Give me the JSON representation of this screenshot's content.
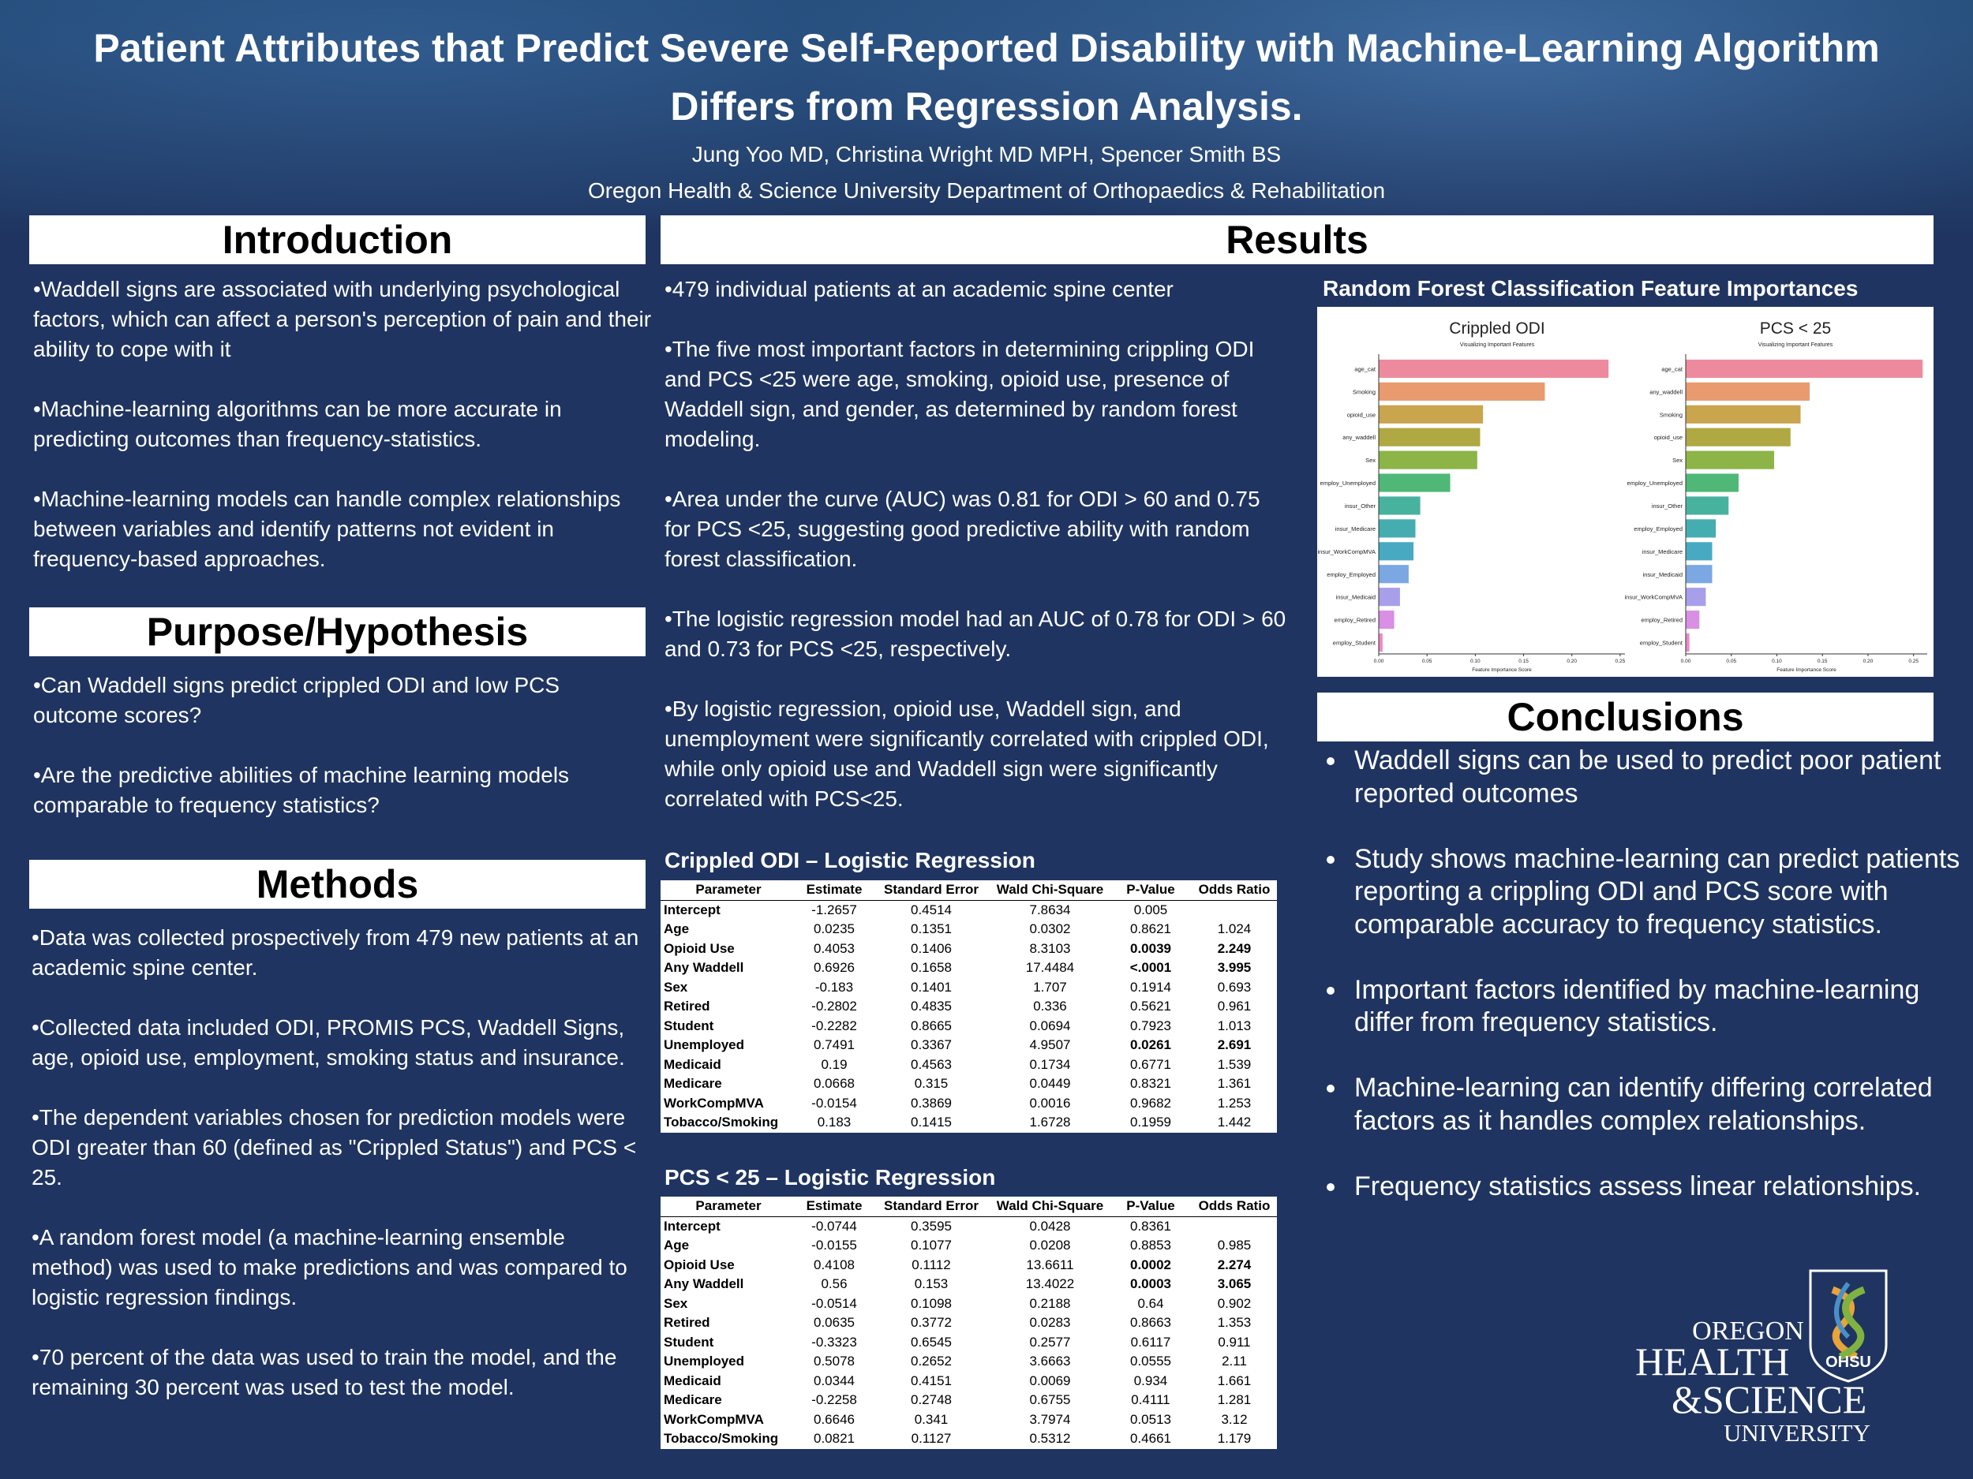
{
  "header": {
    "title": "Patient Attributes that Predict Severe Self-Reported Disability with Machine-Learning Algorithm Differs from Regression Analysis.",
    "authors": "Jung Yoo MD, Christina Wright MD MPH, Spencer Smith BS",
    "affiliation": "Oregon Health & Science University Department of Orthopaedics & Rehabilitation"
  },
  "introduction": {
    "heading": "Introduction",
    "paragraphs": [
      "•Waddell signs are associated with underlying psychological factors, which can affect a person's perception of pain and their ability to cope with it",
      "•Machine-learning algorithms can be more accurate in predicting outcomes than frequency-statistics.",
      "•Machine-learning models can handle complex relationships between variables and identify patterns not evident in frequency-based approaches."
    ]
  },
  "purpose": {
    "heading": "Purpose/Hypothesis",
    "paragraphs": [
      "•Can Waddell signs predict crippled ODI and low PCS outcome scores?",
      "•Are the predictive abilities of machine learning models comparable to frequency statistics?"
    ]
  },
  "methods": {
    "heading": "Methods",
    "paragraphs": [
      "•Data was collected prospectively from 479 new patients at an academic spine center.",
      "•Collected data included ODI, PROMIS PCS, Waddell Signs, age, opioid use, employment, smoking status and insurance.",
      "•The dependent variables chosen for prediction models were ODI greater than 60 (defined as \"Crippled Status\") and PCS < 25.",
      "•A random forest model (a machine-learning ensemble method) was used to make predictions and was compared to logistic regression findings.",
      "•70 percent of the data was used to train the model, and the remaining 30 percent was used to test the model."
    ]
  },
  "results": {
    "heading": "Results",
    "paragraphs": [
      "•479 individual patients at an academic spine center",
      "•The five most important factors in determining crippling ODI and PCS <25 were age, smoking, opioid use, presence of Waddell sign, and gender, as determined by random forest modeling.",
      "•Area under the curve (AUC) was 0.81 for ODI > 60 and 0.75 for PCS <25, suggesting good predictive ability with random forest classification.",
      "•The logistic regression model had an AUC of 0.78 for ODI > 60 and 0.73 for PCS <25, respectively.",
      "•By logistic regression, opioid use, Waddell sign, and unemployment were significantly correlated with crippled ODI, while only opioid use and Waddell sign were significantly correlated with PCS<25."
    ],
    "figure_title": "Random Forest Classification Feature Importances"
  },
  "tables": [
    {
      "title": "Crippled ODI – Logistic Regression",
      "columns": [
        "Parameter",
        "Estimate",
        "Standard Error",
        "Wald Chi-Square",
        "P-Value",
        "Odds Ratio"
      ],
      "highlight_rows": [
        2,
        3,
        7
      ],
      "rows": [
        [
          "Intercept",
          "-1.2657",
          "0.4514",
          "7.8634",
          "0.005",
          null
        ],
        [
          "Age",
          "0.0235",
          "0.1351",
          "0.0302",
          "0.8621",
          "1.024"
        ],
        [
          "Opioid Use",
          "0.4053",
          "0.1406",
          "8.3103",
          "0.0039",
          "2.249"
        ],
        [
          "Any Waddell",
          "0.6926",
          "0.1658",
          "17.4484",
          "<.0001",
          "3.995"
        ],
        [
          "Sex",
          "-0.183",
          "0.1401",
          "1.707",
          "0.1914",
          "0.693"
        ],
        [
          "Retired",
          "-0.2802",
          "0.4835",
          "0.336",
          "0.5621",
          "0.961"
        ],
        [
          "Student",
          "-0.2282",
          "0.8665",
          "0.0694",
          "0.7923",
          "1.013"
        ],
        [
          "Unemployed",
          "0.7491",
          "0.3367",
          "4.9507",
          "0.0261",
          "2.691"
        ],
        [
          "Medicaid",
          "0.19",
          "0.4563",
          "0.1734",
          "0.6771",
          "1.539"
        ],
        [
          "Medicare",
          "0.0668",
          "0.315",
          "0.0449",
          "0.8321",
          "1.361"
        ],
        [
          "WorkCompMVA",
          "-0.0154",
          "0.3869",
          "0.0016",
          "0.9682",
          "1.253"
        ],
        [
          "Tobacco/Smoking",
          "0.183",
          "0.1415",
          "1.6728",
          "0.1959",
          "1.442"
        ]
      ]
    },
    {
      "title": "PCS < 25 – Logistic Regression",
      "columns": [
        "Parameter",
        "Estimate",
        "Standard Error",
        "Wald Chi-Square",
        "P-Value",
        "Odds Ratio"
      ],
      "highlight_rows": [
        2,
        3
      ],
      "rows": [
        [
          "Intercept",
          "-0.0744",
          "0.3595",
          "0.0428",
          "0.8361",
          null
        ],
        [
          "Age",
          "-0.0155",
          "0.1077",
          "0.0208",
          "0.8853",
          "0.985"
        ],
        [
          "Opioid Use",
          "0.4108",
          "0.1112",
          "13.6611",
          "0.0002",
          "2.274"
        ],
        [
          "Any Waddell",
          "0.56",
          "0.153",
          "13.4022",
          "0.0003",
          "3.065"
        ],
        [
          "Sex",
          "-0.0514",
          "0.1098",
          "0.2188",
          "0.64",
          "0.902"
        ],
        [
          "Retired",
          "0.0635",
          "0.3772",
          "0.0283",
          "0.8663",
          "1.353"
        ],
        [
          "Student",
          "-0.3323",
          "0.6545",
          "0.2577",
          "0.6117",
          "0.911"
        ],
        [
          "Unemployed",
          "0.5078",
          "0.2652",
          "3.6663",
          "0.0555",
          "2.11"
        ],
        [
          "Medicaid",
          "0.0344",
          "0.4151",
          "0.0069",
          "0.934",
          "1.661"
        ],
        [
          "Medicare",
          "-0.2258",
          "0.2748",
          "0.6755",
          "0.4111",
          "1.281"
        ],
        [
          "WorkCompMVA",
          "0.6646",
          "0.341",
          "3.7974",
          "0.0513",
          "3.12"
        ],
        [
          "Tobacco/Smoking",
          "0.0821",
          "0.1127",
          "0.5312",
          "0.4661",
          "1.179"
        ]
      ]
    }
  ],
  "conclusions": {
    "heading": "Conclusions",
    "items": [
      "Waddell signs can be used to predict poor patient reported outcomes",
      "Study shows machine-learning can predict patients reporting a crippling ODI and PCS score with comparable accuracy to frequency statistics.",
      "Important factors identified by machine-learning differ from frequency statistics.",
      "Machine-learning can identify differing correlated factors as it handles complex relationships.",
      "Frequency statistics assess linear relationships."
    ]
  },
  "logo": {
    "lines": [
      "OREGON",
      "HEALTH",
      "&SCIENCE",
      "UNIVERSITY"
    ],
    "badge": "OHSU"
  },
  "chart_data": [
    {
      "type": "bar",
      "orientation": "horizontal",
      "title": "Crippled ODI",
      "subtitle": "Visualizing Important Features",
      "x_label": "Feature Importance Score",
      "categories": [
        "age_cat",
        "Smoking",
        "opioid_use",
        "any_waddell",
        "Sex",
        "employ_Unemployed",
        "insur_Other",
        "insur_Medicare",
        "insur_WorkCompMVA",
        "employ_Employed",
        "insur_Medicaid",
        "employ_Retired",
        "employ_Student"
      ],
      "values": [
        0.238,
        0.172,
        0.108,
        0.105,
        0.102,
        0.074,
        0.043,
        0.038,
        0.036,
        0.031,
        0.022,
        0.016,
        0.004
      ],
      "colors": [
        "#ee8a9e",
        "#e99a6e",
        "#c9a54e",
        "#b0a842",
        "#8cb447",
        "#4fb877",
        "#47b39f",
        "#45adb0",
        "#47a9c2",
        "#7ba7e2",
        "#a89fea",
        "#d88fe4",
        "#ec89c9"
      ],
      "xlim": [
        0,
        0.255
      ],
      "xticks": [
        {
          "value": 0,
          "label": "0.00"
        },
        {
          "value": 0.05,
          "label": "0.05"
        },
        {
          "value": 0.1,
          "label": "0.10"
        },
        {
          "value": 0.15,
          "label": "0.15"
        },
        {
          "value": 0.2,
          "label": "0.20"
        },
        {
          "value": 0.25,
          "label": "0.25"
        }
      ]
    },
    {
      "type": "bar",
      "orientation": "horizontal",
      "title": "PCS < 25",
      "subtitle": "Visualizing Important Features",
      "x_label": "Feature Importance Score",
      "categories": [
        "age_cat",
        "any_waddell",
        "Smoking",
        "opioid_use",
        "Sex",
        "employ_Unemployed",
        "insur_Other",
        "employ_Employed",
        "insur_Medicare",
        "insur_Medicaid",
        "insur_WorkCompMVA",
        "employ_Retired",
        "employ_Student"
      ],
      "values": [
        0.26,
        0.136,
        0.126,
        0.115,
        0.097,
        0.058,
        0.047,
        0.033,
        0.029,
        0.029,
        0.022,
        0.015,
        0.004
      ],
      "colors": [
        "#ee8a9e",
        "#e99a6e",
        "#c9a54e",
        "#b0a842",
        "#8cb447",
        "#4fb877",
        "#47b39f",
        "#45adb0",
        "#47a9c2",
        "#7ba7e2",
        "#a89fea",
        "#d88fe4",
        "#ec89c9"
      ],
      "xlim": [
        0,
        0.265
      ],
      "xticks": [
        {
          "value": 0,
          "label": "0.00"
        },
        {
          "value": 0.05,
          "label": "0.05"
        },
        {
          "value": 0.1,
          "label": "0.10"
        },
        {
          "value": 0.15,
          "label": "0.15"
        },
        {
          "value": 0.2,
          "label": "0.20"
        },
        {
          "value": 0.25,
          "label": "0.25"
        }
      ]
    }
  ]
}
